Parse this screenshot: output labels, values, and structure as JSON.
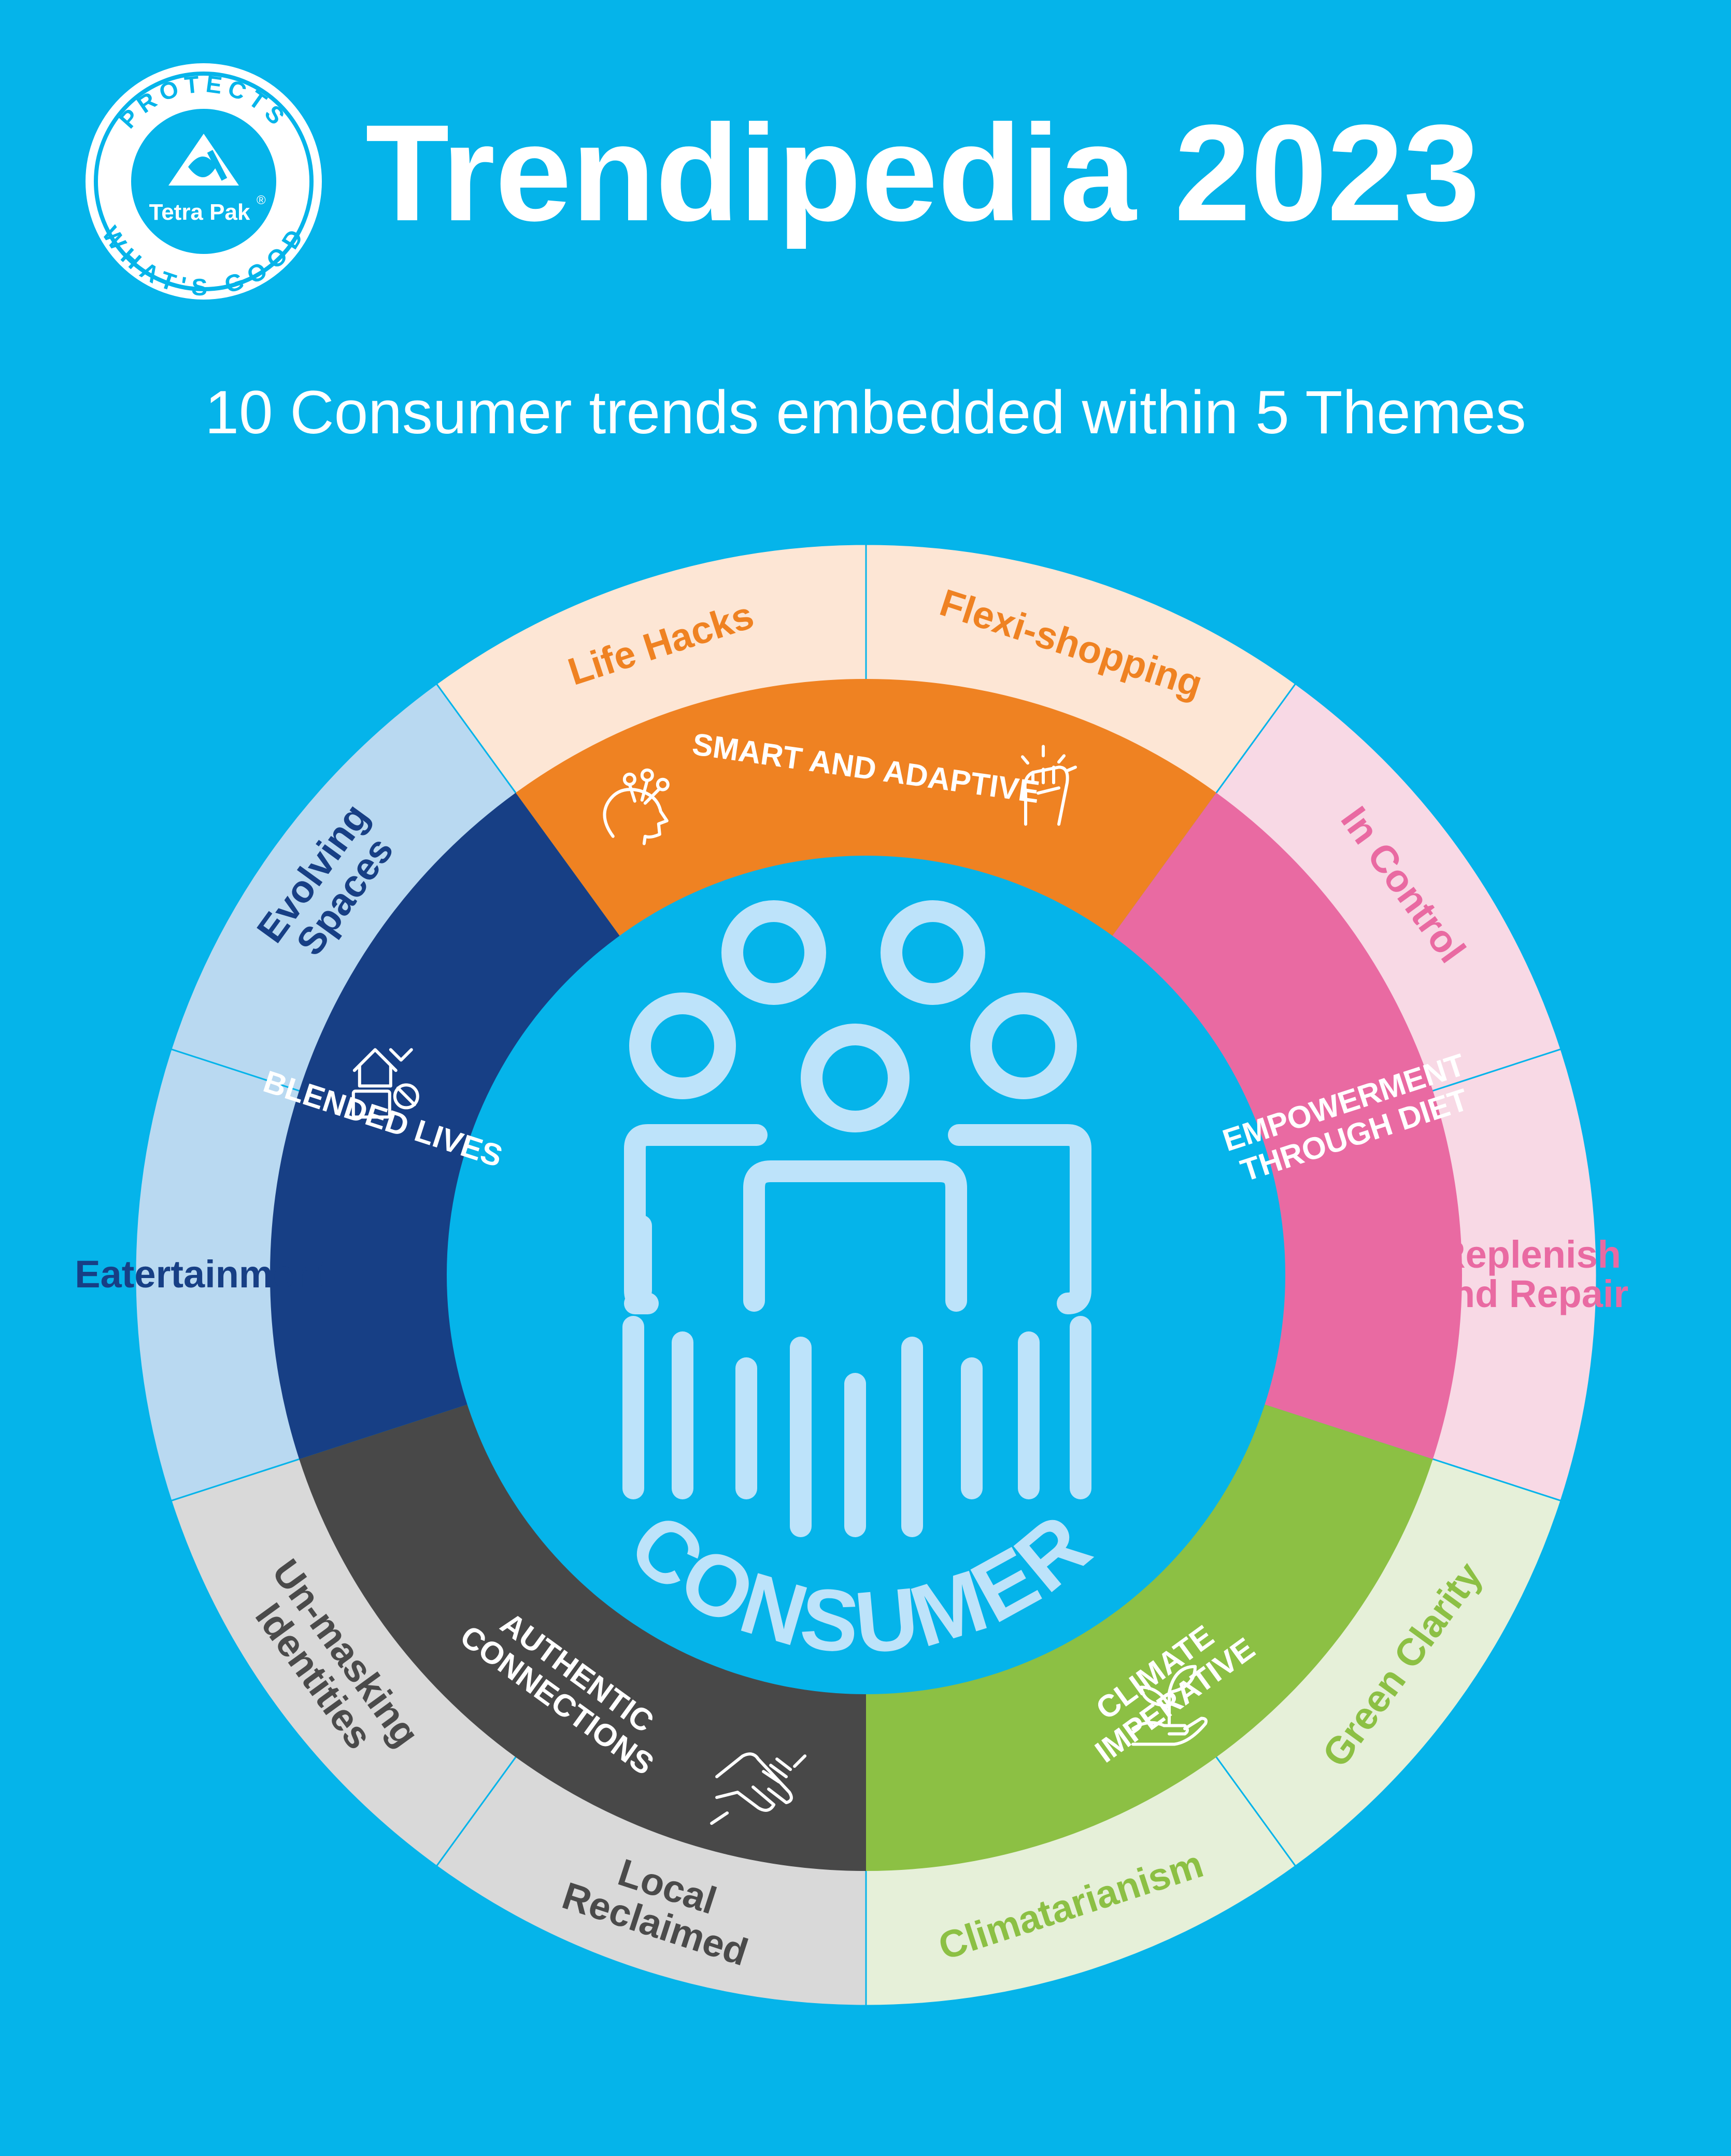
{
  "header": {
    "title": "Trendipedia 2023",
    "subtitle": "10 Consumer trends embedded within 5 Themes"
  },
  "logo": {
    "ring_top_text": "PROTECTS",
    "ring_bottom_text": "WHAT'S GOOD",
    "brand_text": "Tetra Pak",
    "registered_mark": "®"
  },
  "center": {
    "label": "CONSUMER"
  },
  "themes": [
    {
      "label_lines": [
        "SMART AND ADAPTIVE"
      ],
      "icon": "head-ideas-icon",
      "color": "#ef8222"
    },
    {
      "label_lines": [
        "EMPOWERMENT",
        "THROUGH DIET"
      ],
      "icon": "raised-fist-icon",
      "color": "#e96aa2"
    },
    {
      "label_lines": [
        "CLIMATE",
        "IMPERATIVE"
      ],
      "icon": "plant-in-hand-icon",
      "color": "#8cc044"
    },
    {
      "label_lines": [
        "AUTHENTIC",
        "CONNECTIONS"
      ],
      "icon": "handshake-icon",
      "color": "#484848"
    },
    {
      "label_lines": [
        "BLENDED LIVES"
      ],
      "icon": "home-work-icon",
      "color": "#173f85"
    }
  ],
  "trends": [
    {
      "label_lines": [
        "Flexi-shopping"
      ],
      "theme": 0,
      "color": "#fde6d5",
      "text_color": "#ef8222"
    },
    {
      "label_lines": [
        "In Control"
      ],
      "theme": 1,
      "color": "#f8d9e5",
      "text_color": "#e96aa2"
    },
    {
      "label_lines": [
        "Replenish",
        "and Repair"
      ],
      "theme": 1,
      "color": "#f8d9e5",
      "text_color": "#e96aa2"
    },
    {
      "label_lines": [
        "Green Clarity"
      ],
      "theme": 2,
      "color": "#e6f0d9",
      "text_color": "#8cc044"
    },
    {
      "label_lines": [
        "Climatarianism"
      ],
      "theme": 2,
      "color": "#e6f0d9",
      "text_color": "#8cc044"
    },
    {
      "label_lines": [
        "Local",
        "Reclaimed"
      ],
      "theme": 3,
      "color": "#d9d9d9",
      "text_color": "#4a4a4a"
    },
    {
      "label_lines": [
        "Un-masking",
        "Identities"
      ],
      "theme": 3,
      "color": "#d9d9d9",
      "text_color": "#4a4a4a"
    },
    {
      "label_lines": [
        "Eatertainment"
      ],
      "theme": 4,
      "color": "#b9d9f1",
      "text_color": "#173f85"
    },
    {
      "label_lines": [
        "Evolving",
        "Spaces"
      ],
      "theme": 4,
      "color": "#b9d9f1",
      "text_color": "#173f85"
    },
    {
      "label_lines": [
        "Life Hacks"
      ],
      "theme": 0,
      "color": "#fde6d5",
      "text_color": "#ef8222"
    }
  ],
  "colors": {
    "background": "#05b4ea",
    "white": "#ffffff",
    "consumer_icon": "#bde3fa"
  }
}
